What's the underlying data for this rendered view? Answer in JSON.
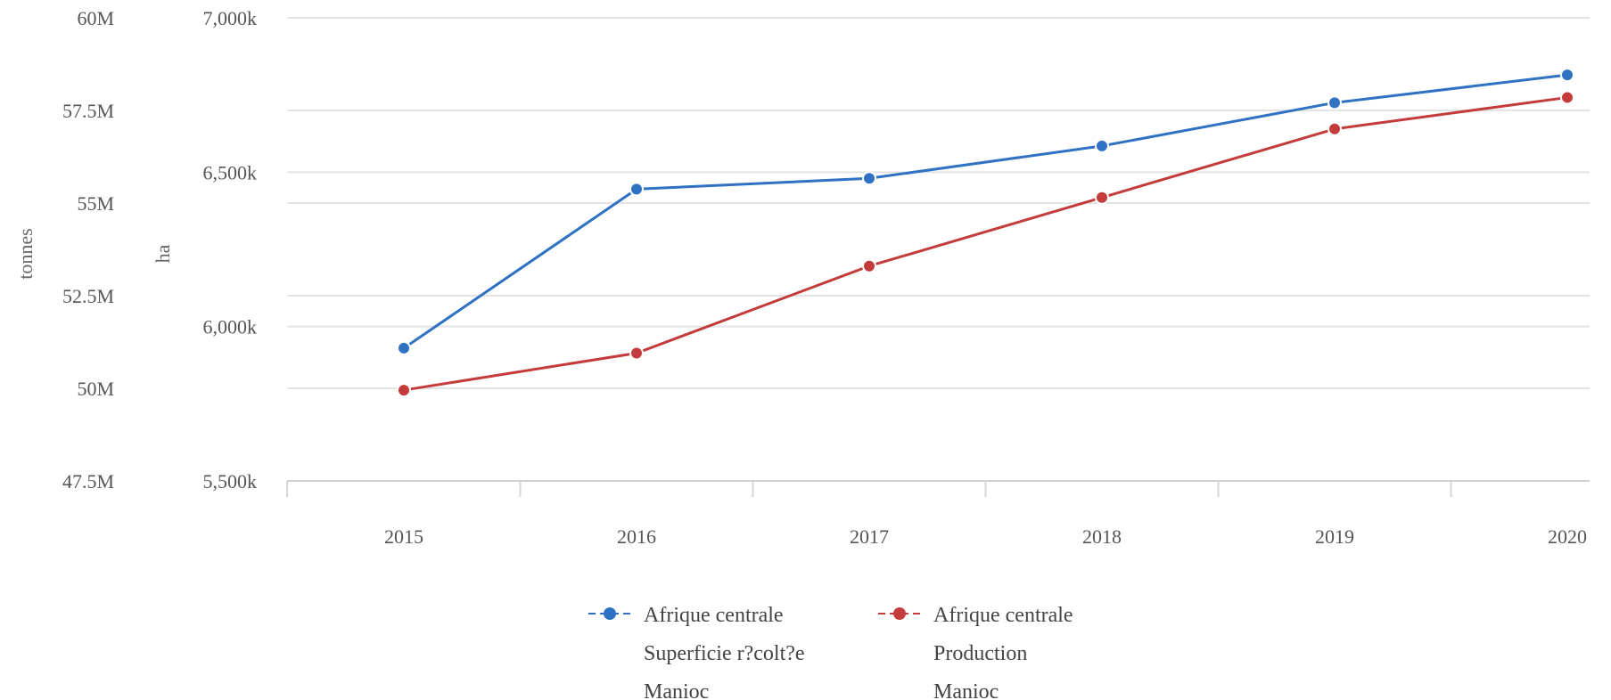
{
  "chart_data": {
    "type": "line",
    "categories": [
      "2015",
      "2016",
      "2017",
      "2018",
      "2019",
      "2020"
    ],
    "y_left_outer": {
      "label": "tonnes",
      "ticks": [
        "60M",
        "57.5M",
        "55M",
        "52.5M",
        "50M",
        "47.5M"
      ],
      "tick_values": [
        60000000,
        57500000,
        55000000,
        52500000,
        50000000,
        47500000
      ],
      "range": [
        47500000,
        60000000
      ]
    },
    "y_left_inner": {
      "label": "ha",
      "ticks": [
        "7,000k",
        "6,500k",
        "6,000k",
        "5,500k"
      ],
      "tick_values": [
        7000000,
        6500000,
        6000000,
        5500000
      ],
      "range": [
        5500000,
        7000000
      ]
    },
    "grid": true,
    "legend_position": "bottom",
    "series": [
      {
        "name_lines": [
          "Afrique centrale",
          "Superficie r?colt?e",
          "Manioc"
        ],
        "axis": "ha",
        "color": "#2f72c4",
        "values": [
          5930000,
          6445000,
          6480000,
          6585000,
          6725000,
          6815000
        ]
      },
      {
        "name_lines": [
          "Afrique centrale",
          "Production",
          "Manioc"
        ],
        "axis": "tonnes",
        "color": "#c43b3b",
        "values": [
          49950000,
          50950000,
          53300000,
          55150000,
          57000000,
          57850000
        ]
      }
    ]
  }
}
